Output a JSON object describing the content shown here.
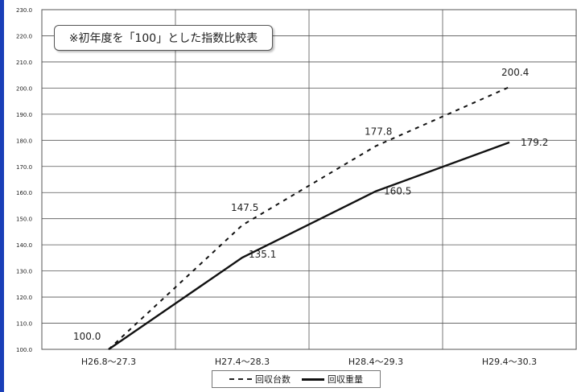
{
  "chart_data": {
    "type": "line",
    "title": "",
    "note": "※初年度を「100」とした指数比較表",
    "categories": [
      "H26.8～27.3",
      "H27.4～28.3",
      "H28.4～29.3",
      "H29.4～30.3"
    ],
    "ylim": [
      100.0,
      230.0
    ],
    "yticks": [
      "100.0",
      "110.0",
      "120.0",
      "130.0",
      "140.0",
      "150.0",
      "160.0",
      "170.0",
      "180.0",
      "190.0",
      "200.0",
      "210.0",
      "220.0",
      "230.0"
    ],
    "grid": true,
    "legend_position": "bottom",
    "series": [
      {
        "name": "回収台数",
        "style": "dashed",
        "values": [
          100.0,
          147.5,
          177.8,
          200.4
        ],
        "labels": [
          "",
          "147.5",
          "177.8",
          "200.4"
        ]
      },
      {
        "name": "回収重量",
        "style": "solid",
        "values": [
          100.0,
          135.1,
          160.5,
          179.2
        ],
        "labels": [
          "100.0",
          "135.1",
          "160.5",
          "179.2"
        ]
      }
    ]
  },
  "colors": {
    "line": "#111111",
    "grid": "#555555",
    "frame_edge": "#1a3fb8"
  }
}
